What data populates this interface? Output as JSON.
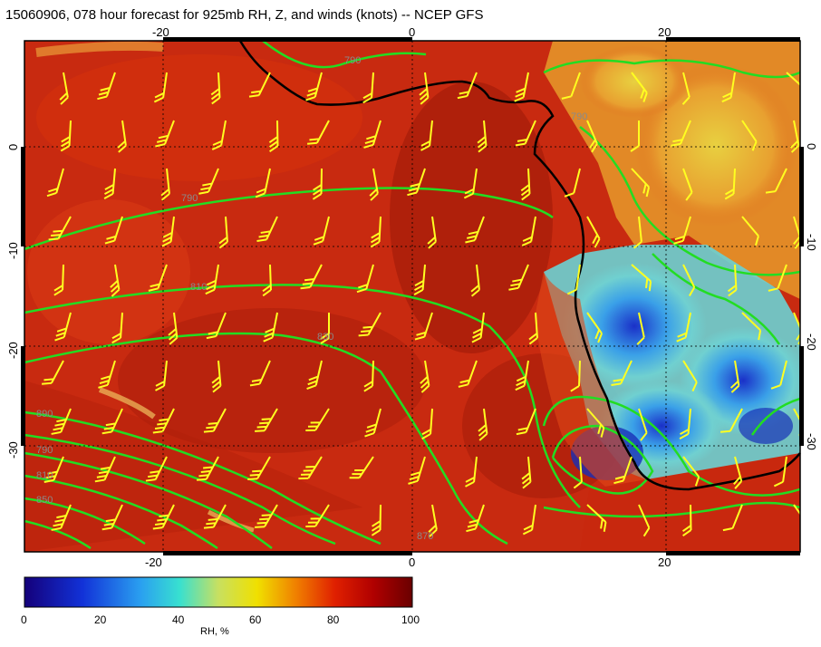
{
  "title": "15060906, 078 hour forecast for 925mb RH, Z, and winds (knots) -- NCEP GFS",
  "axes": {
    "lon_ticks": [
      "-20",
      "0",
      "20"
    ],
    "lat_ticks": [
      "0",
      "-10",
      "-20",
      "-30"
    ]
  },
  "contour_labels": [
    "790",
    "790",
    "790",
    "790",
    "810",
    "810",
    "830",
    "850",
    "870",
    "890"
  ],
  "colorbar": {
    "ticks": [
      "0",
      "20",
      "40",
      "60",
      "80",
      "100"
    ],
    "label": "RH, %",
    "range": [
      0,
      100
    ],
    "colors": [
      "#14007a",
      "#1232d8",
      "#2aa0f0",
      "#38e0d0",
      "#c8e060",
      "#f0e000",
      "#f08000",
      "#e02000",
      "#b00000",
      "#6a0000"
    ]
  }
}
